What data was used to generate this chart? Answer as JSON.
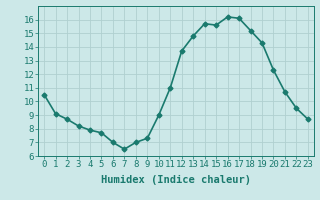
{
  "x": [
    0,
    1,
    2,
    3,
    4,
    5,
    6,
    7,
    8,
    9,
    10,
    11,
    12,
    13,
    14,
    15,
    16,
    17,
    18,
    19,
    20,
    21,
    22,
    23
  ],
  "y": [
    10.5,
    9.1,
    8.7,
    8.2,
    7.9,
    7.7,
    7.0,
    6.5,
    7.0,
    7.3,
    9.0,
    11.0,
    13.7,
    14.8,
    15.7,
    15.6,
    16.2,
    16.1,
    15.2,
    14.3,
    12.3,
    10.7,
    9.5,
    8.7
  ],
  "line_color": "#1a7a6e",
  "marker": "D",
  "marker_size": 2.5,
  "bg_color": "#cce8e8",
  "grid_color": "#b0d0d0",
  "xlabel": "Humidex (Indice chaleur)",
  "ylim": [
    6,
    17
  ],
  "xlim": [
    -0.5,
    23.5
  ],
  "yticks": [
    6,
    7,
    8,
    9,
    10,
    11,
    12,
    13,
    14,
    15,
    16
  ],
  "xticks": [
    0,
    1,
    2,
    3,
    4,
    5,
    6,
    7,
    8,
    9,
    10,
    11,
    12,
    13,
    14,
    15,
    16,
    17,
    18,
    19,
    20,
    21,
    22,
    23
  ],
  "line_width": 1.2,
  "xlabel_fontsize": 7.5,
  "tick_fontsize": 6.5
}
